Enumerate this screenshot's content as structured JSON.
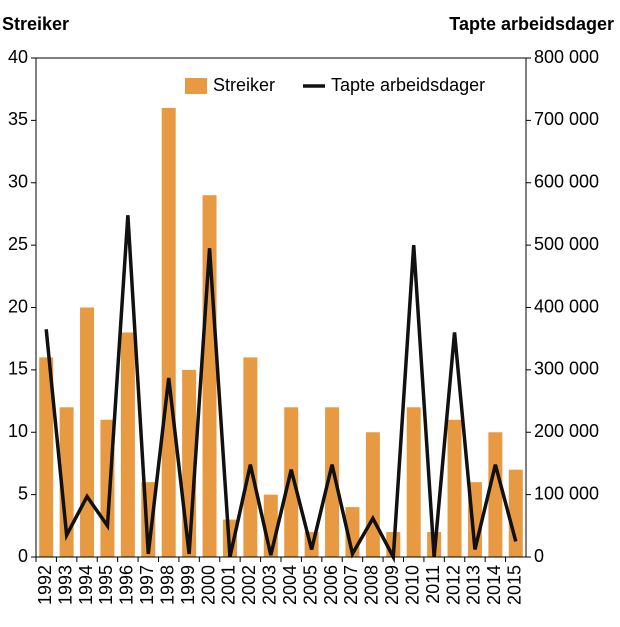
{
  "chart_data": {
    "type": "bar-line",
    "y_label": "Streiker",
    "y2_label": "Tapte arbeidsdager",
    "categories": [
      "1992",
      "1993",
      "1994",
      "1995",
      "1996",
      "1997",
      "1998",
      "1999",
      "2000",
      "2001",
      "2002",
      "2003",
      "2004",
      "2005",
      "2006",
      "2007",
      "2008",
      "2009",
      "2010",
      "2011",
      "2012",
      "2013",
      "2014",
      "2015"
    ],
    "series": [
      {
        "name": "Streiker",
        "type": "bar",
        "color": "#e89a43",
        "values": [
          16,
          12,
          20,
          11,
          18,
          6,
          36,
          15,
          29,
          3,
          16,
          5,
          12,
          2,
          12,
          4,
          10,
          2,
          12,
          2,
          11,
          6,
          10,
          7
        ]
      },
      {
        "name": "Tapte arbeidsdager",
        "type": "line",
        "axis": "y2",
        "color": "#111111",
        "values": [
          365000,
          35000,
          97000,
          50000,
          548000,
          5000,
          287000,
          5000,
          495000,
          0,
          148000,
          3000,
          140000,
          12000,
          148000,
          5000,
          62000,
          0,
          500000,
          0,
          360000,
          12000,
          148000,
          25000
        ]
      }
    ],
    "ylim": [
      0,
      40
    ],
    "yticks": [
      0,
      5,
      10,
      15,
      20,
      25,
      30,
      35,
      40
    ],
    "y2lim": [
      0,
      800000
    ],
    "y2ticks": [
      0,
      {
        "value": 100000,
        "label": "100 000"
      },
      {
        "value": 200000,
        "label": "200 000"
      },
      {
        "value": 300000,
        "label": "300 000"
      },
      {
        "value": 400000,
        "label": "400 000"
      },
      {
        "value": 500000,
        "label": "500 000"
      },
      {
        "value": 600000,
        "label": "600 000"
      },
      {
        "value": 700000,
        "label": "700 000"
      },
      {
        "value": 800000,
        "label": "800 000"
      }
    ],
    "legend": "top-right"
  }
}
